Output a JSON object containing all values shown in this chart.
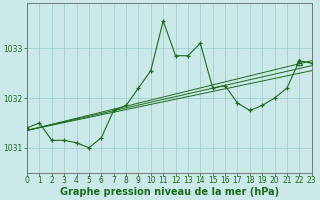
{
  "xlabel": "Graphe pression niveau de la mer (hPa)",
  "bg_color": "#cce9e9",
  "grid_color": "#99cccc",
  "line_color": "#1a6b1a",
  "x_min": 0,
  "x_max": 23,
  "y_min": 1030.5,
  "y_max": 1033.9,
  "yticks": [
    1031,
    1032,
    1033
  ],
  "xticks": [
    0,
    1,
    2,
    3,
    4,
    5,
    6,
    7,
    8,
    9,
    10,
    11,
    12,
    13,
    14,
    15,
    16,
    17,
    18,
    19,
    20,
    21,
    22,
    23
  ],
  "main_x": [
    0,
    1,
    2,
    3,
    4,
    5,
    6,
    7,
    8,
    9,
    10,
    11,
    12,
    13,
    14,
    15,
    16,
    17,
    18,
    19,
    20,
    21,
    22,
    23
  ],
  "main_y": [
    1031.4,
    1031.5,
    1031.15,
    1031.15,
    1031.1,
    1031.0,
    1031.2,
    1031.75,
    1031.85,
    1032.2,
    1032.55,
    1033.55,
    1032.85,
    1032.85,
    1033.1,
    1032.2,
    1032.25,
    1031.9,
    1031.75,
    1031.85,
    1032.0,
    1032.2,
    1032.75,
    1032.7
  ],
  "trend1_x": [
    0,
    23
  ],
  "trend1_y": [
    1031.35,
    1032.55
  ],
  "trend2_x": [
    0,
    23
  ],
  "trend2_y": [
    1031.35,
    1032.65
  ],
  "trend3_x": [
    0,
    23
  ],
  "trend3_y": [
    1031.35,
    1032.75
  ],
  "triangle_x": 22,
  "triangle_y": 1032.73,
  "xlabel_fontsize": 7,
  "tick_fontsize": 5.5,
  "xlabel_color": "#1a6b1a",
  "tick_color": "#1a6b1a",
  "spine_color": "#666666"
}
